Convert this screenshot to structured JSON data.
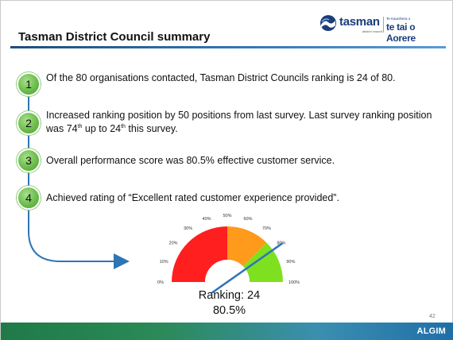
{
  "title": "Tasman District Council summary",
  "logo": {
    "word": "tasman",
    "sub": "district council",
    "maori_small": "Te Kaunihera o",
    "maori": "te tai o Aorere"
  },
  "steps": [
    {
      "number": "1",
      "text_plain": "Of the 80 organisations contacted, Tasman District Councils ranking is 24 of 80."
    },
    {
      "number": "2",
      "text_a": "Increased ranking position by 50 positions from last survey. Last survey ranking position was 74",
      "sup_a": "th",
      "text_b": " up to 24",
      "sup_b": "th",
      "text_c": " this survey."
    },
    {
      "number": "3",
      "text_plain": "Overall performance score was 80.5% effective customer service."
    },
    {
      "number": "4",
      "text_plain": "Achieved rating of “Excellent rated customer experience provided”."
    }
  ],
  "gauge": {
    "ticks": [
      "0%",
      "10%",
      "20%",
      "30%",
      "40%",
      "50%",
      "60%",
      "70%",
      "80%",
      "90%",
      "100%"
    ],
    "value_percent": 80.5,
    "bands": [
      {
        "from": 0,
        "to": 50,
        "color": "#ff1f1f"
      },
      {
        "from": 50,
        "to": 75,
        "color": "#ff9a1a"
      },
      {
        "from": 75,
        "to": 100,
        "color": "#7fe020"
      }
    ],
    "needle_color": "#2e75b6"
  },
  "ranking_label": "Ranking: 24",
  "score_label": "80.5%",
  "page_number": "42",
  "footer_logo": "ALGIM",
  "colors": {
    "accent_blue": "#2e75b6",
    "step_green": "#6cbd4c",
    "footer_green": "#2b8a57"
  }
}
